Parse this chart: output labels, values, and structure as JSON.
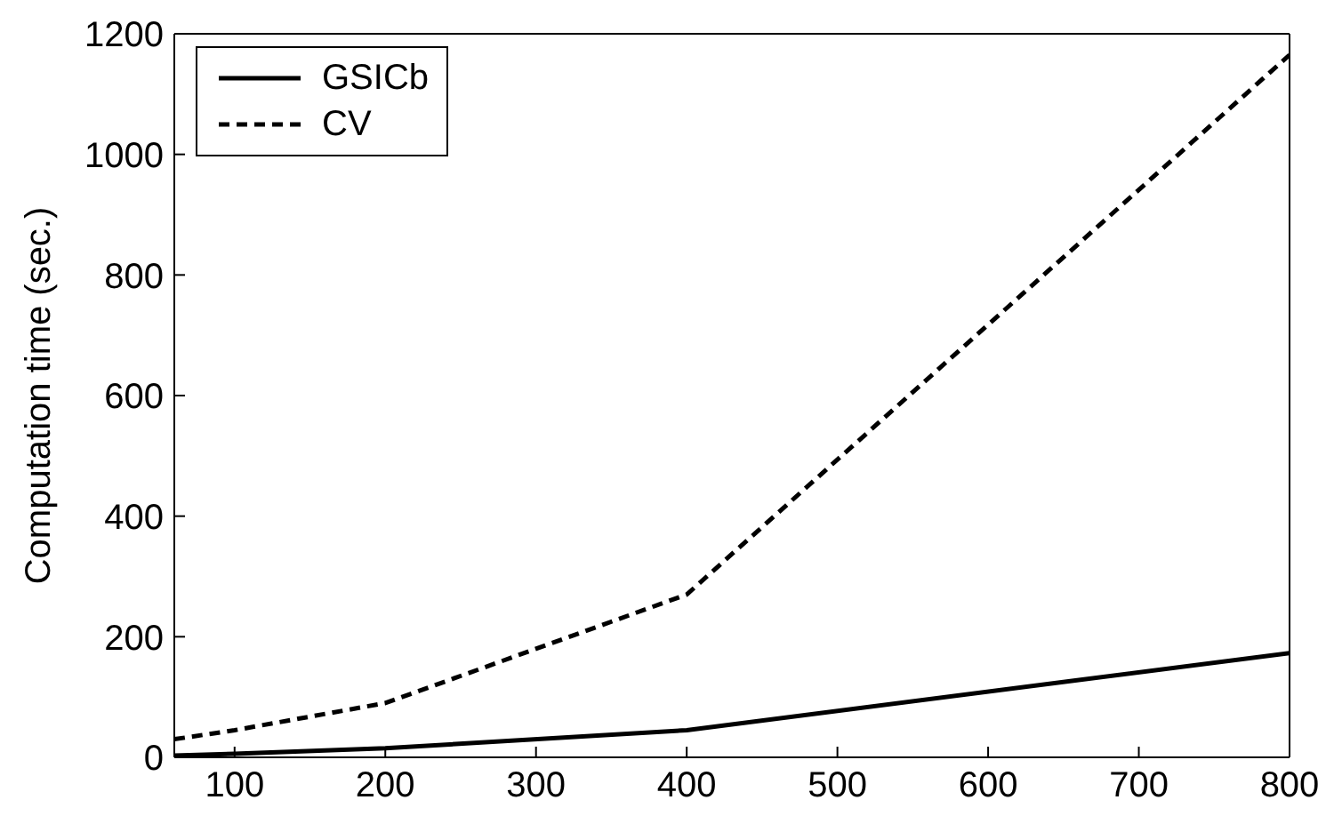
{
  "chart_data": {
    "type": "line",
    "ylabel": "Computation time (sec.)",
    "x": [
      60,
      100,
      200,
      400,
      800
    ],
    "series": [
      {
        "name": "GSICb",
        "color": "#000000",
        "values": [
          3,
          6,
          15,
          45,
          173
        ],
        "line_style": "solid"
      },
      {
        "name": "CV",
        "color": "#000000",
        "values": [
          30,
          45,
          90,
          270,
          1165
        ],
        "line_style": "dashed"
      }
    ],
    "xlim": [
      60,
      800
    ],
    "xticks": [
      100,
      200,
      300,
      400,
      500,
      600,
      700,
      800
    ],
    "ylim": [
      0,
      1200
    ],
    "yticks": [
      0,
      200,
      400,
      600,
      800,
      1000,
      1200
    ],
    "legend": "top left",
    "marker": "none"
  }
}
